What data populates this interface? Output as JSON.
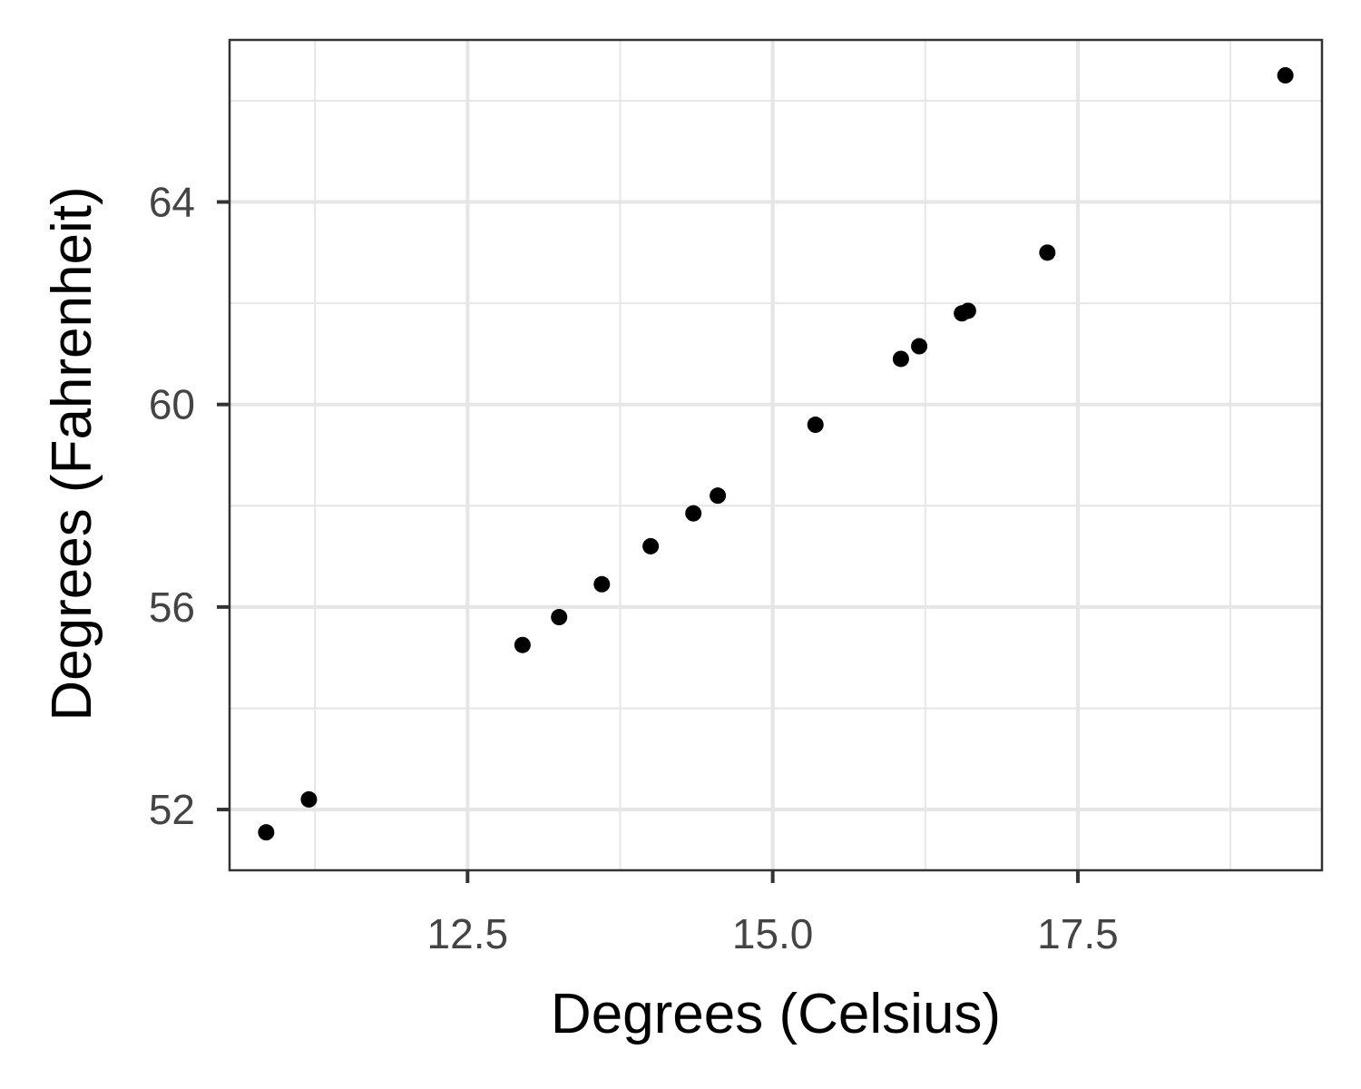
{
  "chart_data": {
    "type": "scatter",
    "title": "",
    "xlabel": "Degrees (Celsius)",
    "ylabel": "Degrees (Fahrenheit)",
    "xlim": [
      10.55,
      19.5
    ],
    "ylim": [
      50.8,
      67.2
    ],
    "x_ticks": [
      12.5,
      15.0,
      17.5
    ],
    "x_tick_labels": [
      "12.5",
      "15.0",
      "17.5"
    ],
    "y_ticks": [
      52,
      56,
      60,
      64
    ],
    "y_tick_labels": [
      "52",
      "56",
      "60",
      "64"
    ],
    "grid": true,
    "legend": "none",
    "colors": {
      "point": "#000000",
      "grid": "#e6e6e6",
      "panel_border": "#333333",
      "tick_text": "#444444"
    },
    "points": [
      {
        "x": 10.85,
        "y": 51.55
      },
      {
        "x": 11.2,
        "y": 52.2
      },
      {
        "x": 12.95,
        "y": 55.25
      },
      {
        "x": 13.25,
        "y": 55.8
      },
      {
        "x": 13.6,
        "y": 56.45
      },
      {
        "x": 14.0,
        "y": 57.2
      },
      {
        "x": 14.35,
        "y": 57.85
      },
      {
        "x": 14.55,
        "y": 58.2
      },
      {
        "x": 15.35,
        "y": 59.6
      },
      {
        "x": 16.05,
        "y": 60.9
      },
      {
        "x": 16.2,
        "y": 61.15
      },
      {
        "x": 16.55,
        "y": 61.8
      },
      {
        "x": 16.6,
        "y": 61.85
      },
      {
        "x": 17.25,
        "y": 63.0
      },
      {
        "x": 19.2,
        "y": 66.5
      }
    ]
  }
}
